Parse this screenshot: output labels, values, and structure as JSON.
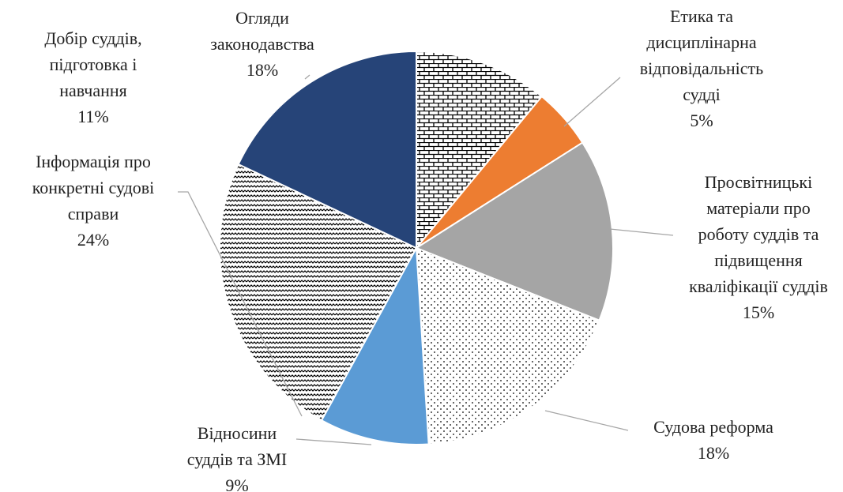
{
  "chart_data": {
    "type": "pie",
    "categories": [
      "Добір суддів, підготовка і навчання",
      "Етика та дисциплінарна відповідальність судді",
      "Просвітницькі матеріали про роботу суддів та підвищення кваліфікації суддів",
      "Судова реформа",
      "Відносини суддів та ЗМІ",
      "Інформація про конкретні судові справи",
      "Огляди законодавства"
    ],
    "values": [
      11,
      5,
      15,
      18,
      9,
      24,
      18
    ],
    "value_labels": [
      "11%",
      "5%",
      "15%",
      "18%",
      "9%",
      "24%",
      "18%"
    ],
    "fills": [
      "bricks",
      "#ed7d31",
      "#a5a5a5",
      "dots",
      "#5b9bd5",
      "waves",
      "#264478"
    ]
  }
}
